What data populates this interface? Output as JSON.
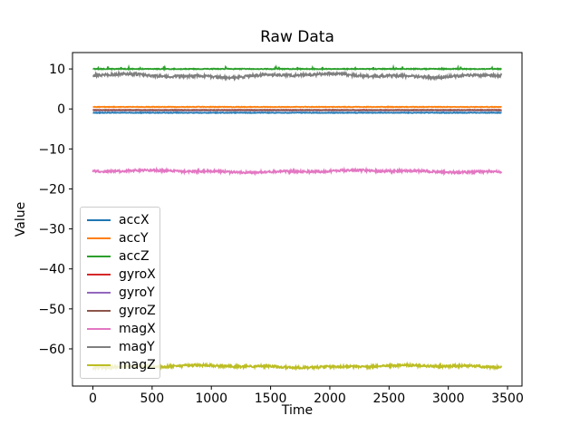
{
  "chart_data": {
    "type": "line",
    "title": "Raw Data",
    "xlabel": "Time",
    "ylabel": "Value",
    "xlim": [
      -172,
      3622
    ],
    "ylim": [
      -69.3,
      14.1
    ],
    "x_range": [
      0,
      3450
    ],
    "n_points": 900,
    "grid": false,
    "xticks": [
      0,
      500,
      1000,
      1500,
      2000,
      2500,
      3000,
      3500
    ],
    "xtick_labels": [
      "0",
      "500",
      "1000",
      "1500",
      "2000",
      "2500",
      "3000",
      "3500"
    ],
    "yticks": [
      10,
      0,
      -10,
      -20,
      -30,
      -40,
      -50,
      -60
    ],
    "ytick_labels": [
      "10",
      "0",
      "−10",
      "−20",
      "−30",
      "−40",
      "−50",
      "−60"
    ],
    "legend": {
      "position": "inside lower-left",
      "entries": [
        "accX",
        "accY",
        "accZ",
        "gyroX",
        "gyroY",
        "gyroZ",
        "magX",
        "magY",
        "magZ"
      ]
    },
    "series": [
      {
        "name": "accX",
        "color": "#1f77b4",
        "mean": -0.95,
        "noise": 0.07,
        "drift": 0.0,
        "spikes": false
      },
      {
        "name": "accY",
        "color": "#ff7f0e",
        "mean": 0.5,
        "noise": 0.07,
        "drift": 0.0,
        "spikes": false
      },
      {
        "name": "accZ",
        "color": "#2ca02c",
        "mean": 10.0,
        "noise": 0.09,
        "drift": 0.0,
        "spikes": true
      },
      {
        "name": "gyroX",
        "color": "#d62728",
        "mean": -0.25,
        "noise": 0.05,
        "drift": 0.0,
        "spikes": false
      },
      {
        "name": "gyroY",
        "color": "#9467bd",
        "mean": -0.35,
        "noise": 0.05,
        "drift": 0.0,
        "spikes": false
      },
      {
        "name": "gyroZ",
        "color": "#8c564b",
        "mean": -0.3,
        "noise": 0.06,
        "drift": 0.0,
        "spikes": false
      },
      {
        "name": "magX",
        "color": "#e377c2",
        "mean": -15.6,
        "noise": 0.28,
        "drift": 0.18,
        "spikes": false
      },
      {
        "name": "magY",
        "color": "#7f7f7f",
        "mean": 8.35,
        "noise": 0.33,
        "drift": 0.3,
        "spikes": false
      },
      {
        "name": "magZ",
        "color": "#bcbd22",
        "mean": -64.4,
        "noise": 0.3,
        "drift": 0.2,
        "spikes": false
      }
    ],
    "axis_color": "#000000",
    "background_color": "#ffffff"
  }
}
